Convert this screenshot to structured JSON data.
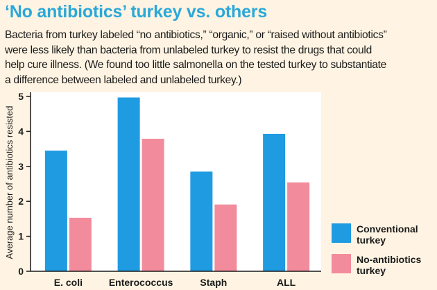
{
  "title": "‘No antibiotics’ turkey vs. others",
  "description_lines": [
    "Bacteria from turkey labeled “no antibiotics,” “organic,” or “raised without antibiotics”",
    "were less likely than bacteria from unlabeled turkey to resist the drugs that could",
    "help cure illness. (We found too little salmonella on the tested turkey to substantiate",
    "a difference between labeled and unlabeled turkey.)"
  ],
  "chart_data": {
    "type": "bar",
    "categories": [
      "E. coli",
      "Enterococcus",
      "Staph",
      "ALL"
    ],
    "series": [
      {
        "name": "Conventional turkey",
        "legend_lines": [
          "Conventional",
          "turkey"
        ],
        "color": "#1f9be2",
        "values": [
          3.45,
          4.97,
          2.85,
          3.93
        ]
      },
      {
        "name": "No-antibiotics turkey",
        "legend_lines": [
          "No-antibiotics",
          "turkey"
        ],
        "color": "#f28c9c",
        "values": [
          1.53,
          3.79,
          1.91,
          2.54
        ]
      }
    ],
    "title": "",
    "xlabel": "",
    "ylabel": "Average number of antibiotics resisted",
    "ylim": [
      0,
      5
    ],
    "yticks": [
      0,
      1,
      2,
      3,
      4,
      5
    ],
    "grid": false,
    "legend_position": "bottom-right"
  }
}
